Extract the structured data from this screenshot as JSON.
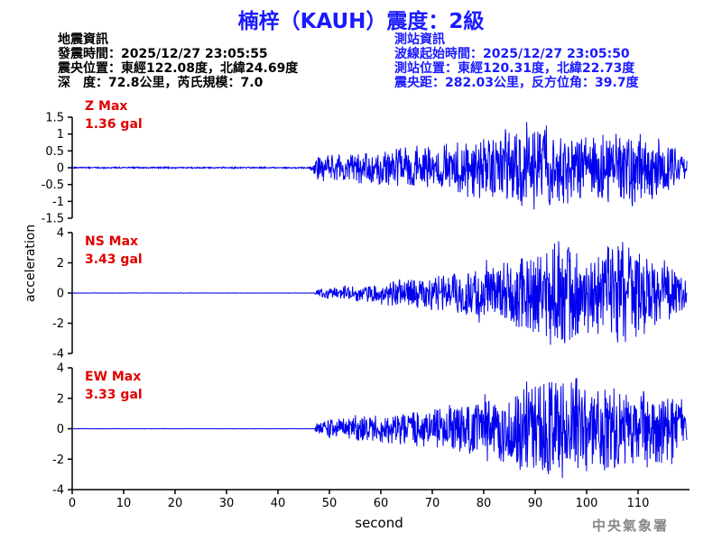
{
  "title": "楠梓（KAUH）震度：2級",
  "info_left": [
    "地震資訊",
    "發震時間：2025/12/27 23:05:55",
    "震央位置：東經122.08度，北緯24.69度",
    "深　度：72.8公里，芮氏規模：7.0"
  ],
  "info_right": [
    "測站資訊",
    "波線起始時間：2025/12/27 23:05:50",
    "測站位置：東經120.31度，北緯22.73度",
    "震央距：282.03公里，反方位角：39.7度"
  ],
  "agency": "中央氣象署",
  "chart_data": {
    "type": "line",
    "xlabel": "second",
    "ylabel": "acceleration",
    "xlim": [
      0,
      120
    ],
    "x_ticks": [
      0,
      10,
      20,
      30,
      40,
      50,
      60,
      70,
      80,
      90,
      100,
      110
    ],
    "onset_seconds": 47,
    "line_color": "#0000ee",
    "panels": [
      {
        "name": "Z Max",
        "max_label": "1.36 gal",
        "peak": 1.36,
        "ylim": [
          -1.5,
          1.5
        ],
        "y_ticks": [
          -1.5,
          -1,
          -0.5,
          0,
          0.5,
          1,
          1.5
        ],
        "y_tick_labels": [
          "-1.5",
          "-1",
          "-0.5",
          "0",
          "0.5",
          "1",
          "1.5"
        ],
        "envelope": [
          [
            0,
            0.02
          ],
          [
            46,
            0.02
          ],
          [
            48,
            0.35
          ],
          [
            60,
            0.5
          ],
          [
            70,
            0.55
          ],
          [
            80,
            0.9
          ],
          [
            90,
            1.1
          ],
          [
            100,
            0.85
          ],
          [
            108,
            1.1
          ],
          [
            115,
            0.7
          ],
          [
            119,
            0.35
          ]
        ]
      },
      {
        "name": "NS Max",
        "max_label": "3.43 gal",
        "peak": 3.43,
        "ylim": [
          -4,
          4
        ],
        "y_ticks": [
          -4,
          -2,
          0,
          2,
          4
        ],
        "y_tick_labels": [
          "-4",
          "-2",
          "0",
          "2",
          "4"
        ],
        "envelope": [
          [
            0,
            0.01
          ],
          [
            47,
            0.01
          ],
          [
            48,
            0.3
          ],
          [
            60,
            0.6
          ],
          [
            70,
            1.0
          ],
          [
            80,
            1.6
          ],
          [
            90,
            2.4
          ],
          [
            95,
            3.43
          ],
          [
            100,
            2.3
          ],
          [
            108,
            3.2
          ],
          [
            115,
            1.8
          ],
          [
            119,
            1.2
          ]
        ]
      },
      {
        "name": "EW Max",
        "max_label": "3.33 gal",
        "peak": 3.33,
        "ylim": [
          -4,
          4
        ],
        "y_ticks": [
          -4,
          -2,
          0,
          2,
          4
        ],
        "y_tick_labels": [
          "-4",
          "-2",
          "0",
          "2",
          "4"
        ],
        "envelope": [
          [
            0,
            0.01
          ],
          [
            47,
            0.01
          ],
          [
            48,
            0.5
          ],
          [
            60,
            0.9
          ],
          [
            70,
            1.2
          ],
          [
            80,
            1.8
          ],
          [
            90,
            2.8
          ],
          [
            95,
            3.33
          ],
          [
            100,
            2.6
          ],
          [
            108,
            2.7
          ],
          [
            115,
            2.2
          ],
          [
            119,
            1.6
          ]
        ]
      }
    ]
  }
}
